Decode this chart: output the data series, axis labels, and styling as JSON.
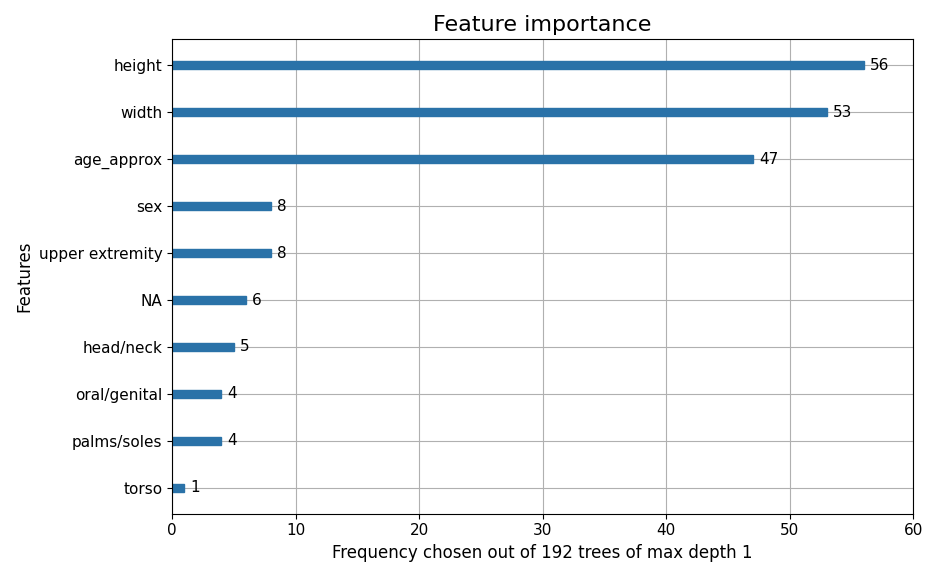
{
  "title": "Feature importance",
  "xlabel": "Frequency chosen out of 192 trees of max depth 1",
  "ylabel": "Features",
  "features": [
    "torso",
    "palms/soles",
    "oral/genital",
    "head/neck",
    "NA",
    "upper extremity",
    "sex",
    "age_approx",
    "width",
    "height"
  ],
  "values": [
    1,
    4,
    4,
    5,
    6,
    8,
    8,
    47,
    53,
    56
  ],
  "bar_color": "#2a72a8",
  "bar_edge_color": "#2a72a8",
  "xlim": [
    0,
    60
  ],
  "xticks": [
    0,
    10,
    20,
    30,
    40,
    50,
    60
  ],
  "grid_color": "#b0b0b0",
  "title_fontsize": 16,
  "label_fontsize": 12,
  "tick_fontsize": 11,
  "annotation_fontsize": 11,
  "bar_height": 0.18
}
